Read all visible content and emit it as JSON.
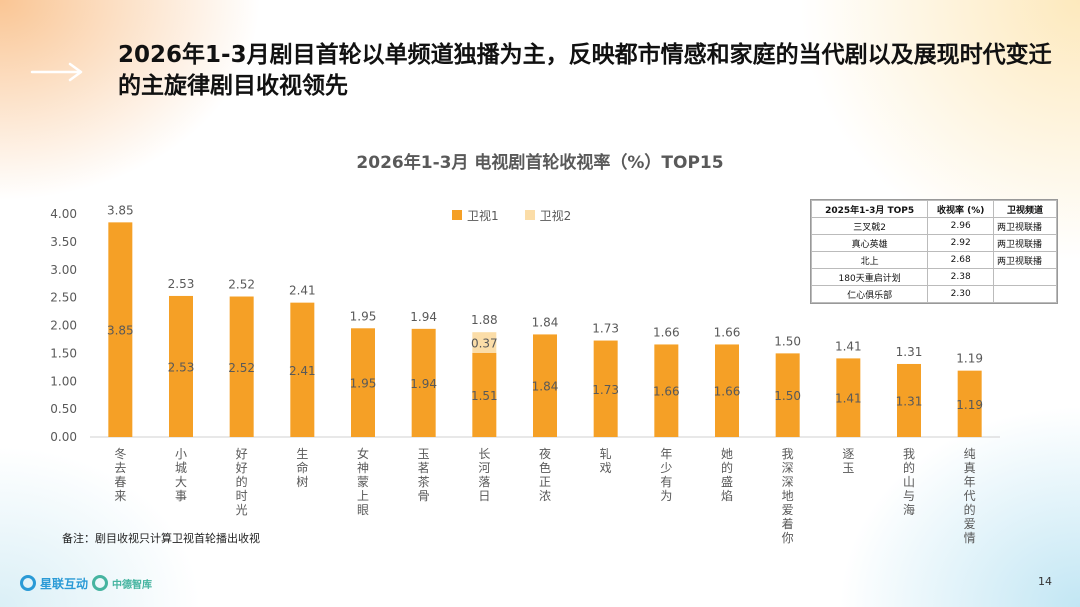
{
  "title": "2026年1-3月剧目首轮以单频道独播为主，反映都市情感和家庭的当代剧以及展现时代变迁的主旋律剧目收视领先",
  "note": "备注：剧目收视只计算卫视首轮播出收视",
  "page_number": "14",
  "logos": {
    "starlink": "星联互动",
    "direct": "中德智库"
  },
  "colors": {
    "series1": "#F5A026",
    "series2": "#FBDDA8",
    "axis_text": "#595959",
    "background": "#FFFFFF"
  },
  "chart_data": {
    "type": "bar",
    "title": "2026年1-3月 电视剧首轮收视率（%）TOP15",
    "categories": [
      "冬去春来",
      "小城大事",
      "好好的时光",
      "生命树",
      "女神蒙上眼",
      "玉茗茶骨",
      "长河落日",
      "夜色正浓",
      "轧戏",
      "年少有为",
      "她的盛焰",
      "我深深地爱着你",
      "逐玉",
      "我的山与海",
      "纯真年代的爱情"
    ],
    "series": [
      {
        "name": "卫视1",
        "values": [
          3.85,
          2.53,
          2.52,
          2.41,
          1.95,
          1.94,
          1.51,
          1.84,
          1.73,
          1.66,
          1.66,
          1.5,
          1.41,
          1.31,
          1.19
        ]
      },
      {
        "name": "卫视2",
        "values": [
          null,
          null,
          null,
          null,
          null,
          null,
          0.37,
          null,
          null,
          null,
          null,
          null,
          null,
          null,
          null
        ]
      }
    ],
    "totals": [
      "3.85",
      "2.53",
      "2.52",
      "2.41",
      "1.95",
      "1.94",
      "1.88",
      "1.84",
      "1.73",
      "1.66",
      "1.66",
      "1.50",
      "1.41",
      "1.31",
      "1.19"
    ],
    "ylim": [
      0,
      4.0
    ],
    "yticks": [
      "0.00",
      "0.50",
      "1.00",
      "1.50",
      "2.00",
      "2.50",
      "3.00",
      "3.50",
      "4.00"
    ],
    "legend": "top-center",
    "grid": false,
    "stacked": true
  },
  "top5_table": {
    "headers": [
      "2025年1-3月 TOP5",
      "收视率 (%)",
      "卫视频道"
    ],
    "rows": [
      {
        "name": "三叉戟2",
        "rating": "2.96",
        "channel": "两卫视联播"
      },
      {
        "name": "真心英雄",
        "rating": "2.92",
        "channel": "两卫视联播"
      },
      {
        "name": "北上",
        "rating": "2.68",
        "channel": "两卫视联播"
      },
      {
        "name": "180天重启计划",
        "rating": "2.38",
        "channel": ""
      },
      {
        "name": "仁心俱乐部",
        "rating": "2.30",
        "channel": ""
      }
    ]
  }
}
